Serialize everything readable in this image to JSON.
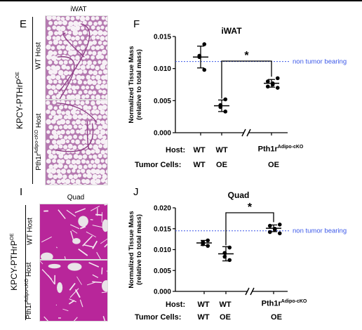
{
  "panels": {
    "E": {
      "letter": "E",
      "image_title": "iWAT",
      "row_labels": [
        "WT Host",
        "Pth1r"
      ],
      "row_label_sup": "Adipo-cKO",
      "row_label_suffix": " Host",
      "group_label": "KPCY-PTHrP",
      "group_label_sup": "OE"
    },
    "I": {
      "letter": "I",
      "image_title": "Quad",
      "row_labels": [
        "WT Host",
        "Pth1r"
      ],
      "row_label_sup": "Adipo-cKO",
      "row_label_suffix": " Host",
      "group_label": "KPCY-PTHrP",
      "group_label_sup": "OE"
    },
    "F": {
      "letter": "F",
      "host_label": "Host:",
      "tumor_label": "Tumor Cells:",
      "host_values": [
        "WT",
        "WT",
        "Pth1r"
      ],
      "host_sup": "Adipo-cKO",
      "tumor_values": [
        "WT",
        "OE",
        "OE"
      ]
    },
    "J": {
      "letter": "J",
      "host_label": "Host:",
      "tumor_label": "Tumor Cells:",
      "host_values": [
        "WT",
        "WT",
        "Pth1r"
      ],
      "host_sup": "Adipo-cKO",
      "tumor_values": [
        "WT",
        "OE",
        "OE"
      ]
    }
  },
  "chart_data": [
    {
      "type": "scatter",
      "title": "iWAT",
      "ylabel_lines": [
        "Normalized Tissue Mass",
        "(relative to total mass)"
      ],
      "ylim": [
        0,
        0.015
      ],
      "yticks": [
        0.0,
        0.005,
        0.01,
        0.015
      ],
      "ytick_labels": [
        "0.000",
        "0.005",
        "0.010",
        "0.015"
      ],
      "axis_break": true,
      "reference_line": {
        "value": 0.0111,
        "label": "non tumor bearing",
        "color": "#3a57e8",
        "style": "dotted"
      },
      "significance": {
        "label": "*",
        "between": [
          1,
          2
        ]
      },
      "groups": [
        {
          "points": [
            0.0138,
            0.012,
            0.0118,
            0.0098
          ],
          "mean": 0.0118,
          "sd": 0.0017
        },
        {
          "points": [
            0.0052,
            0.0043,
            0.004,
            0.0033
          ],
          "mean": 0.0042,
          "sd": 0.0009
        },
        {
          "points": [
            0.0085,
            0.008,
            0.0077,
            0.0075,
            0.0072,
            0.007
          ],
          "mean": 0.0077,
          "sd": 0.0006
        }
      ]
    },
    {
      "type": "scatter",
      "title": "Quad",
      "ylabel_lines": [
        "Normalized Tissue Mass",
        "(relative to total mass)"
      ],
      "ylim": [
        0,
        0.02
      ],
      "yticks": [
        0.0,
        0.005,
        0.01,
        0.015,
        0.02
      ],
      "ytick_labels": [
        "0.000",
        "0.005",
        "0.010",
        "0.015",
        "0.020"
      ],
      "axis_break": true,
      "reference_line": {
        "value": 0.0145,
        "label": "non tumor bearing",
        "color": "#3a57e8",
        "style": "dotted"
      },
      "significance": {
        "label": "*",
        "between": [
          1,
          2
        ]
      },
      "groups": [
        {
          "points": [
            0.0122,
            0.0118,
            0.0113,
            0.0109
          ],
          "mean": 0.0116,
          "sd": 0.0006
        },
        {
          "points": [
            0.0105,
            0.0092,
            0.0083,
            0.0075
          ],
          "mean": 0.009,
          "sd": 0.0017
        },
        {
          "points": [
            0.016,
            0.0157,
            0.015,
            0.0148,
            0.0142,
            0.0139
          ],
          "mean": 0.0151,
          "sd": 0.0008
        }
      ]
    }
  ]
}
